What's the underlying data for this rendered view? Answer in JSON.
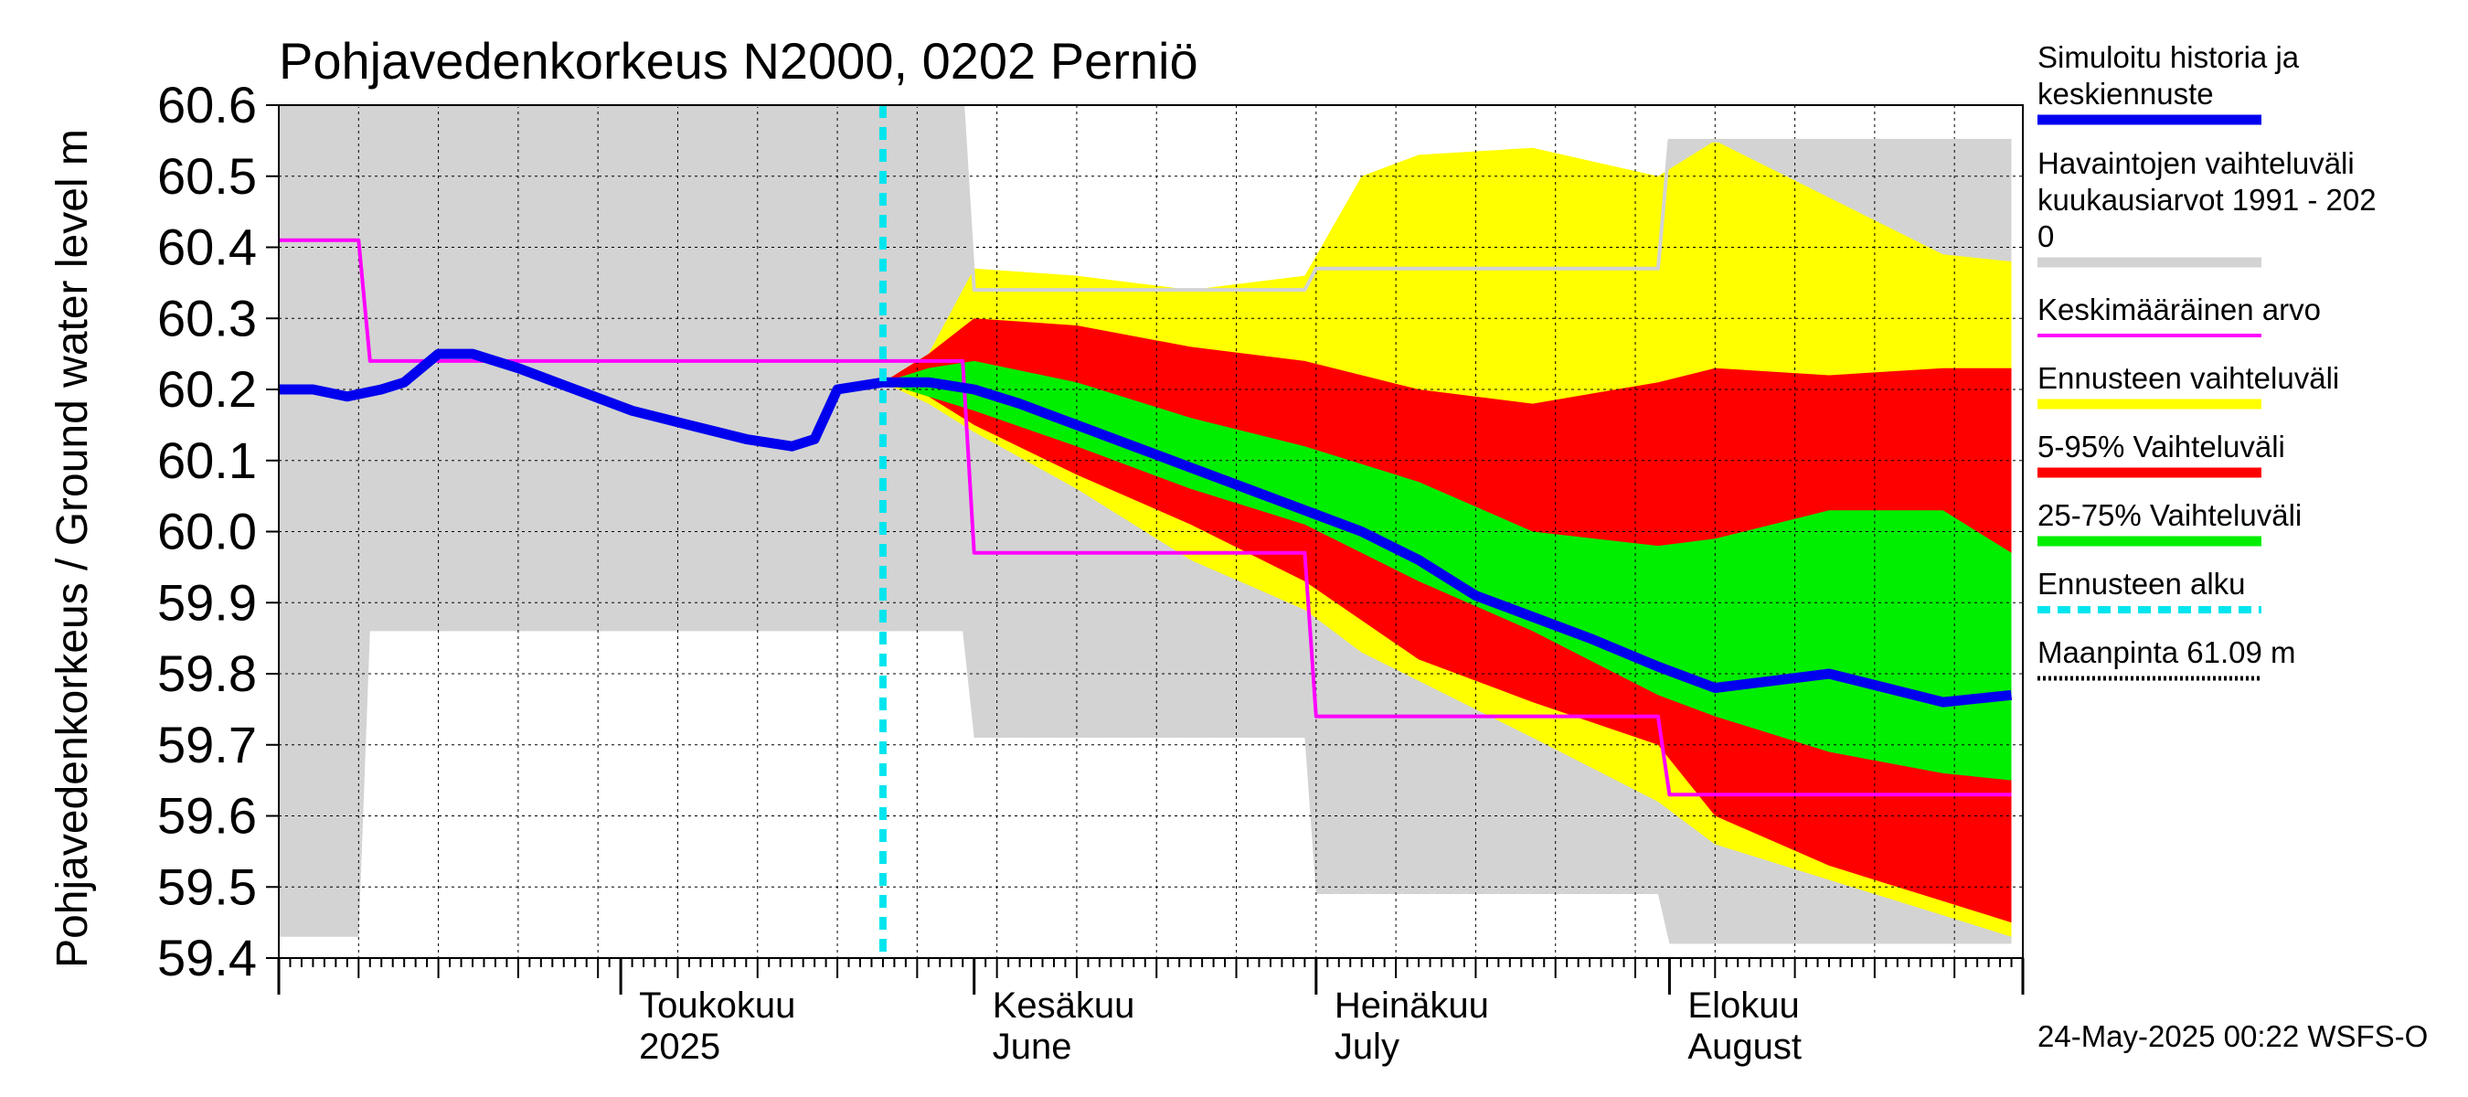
{
  "chart_data": {
    "type": "area",
    "title": "Pohjavedenkorkeus N2000, 0202 Perniö",
    "ylabel": "Pohjavedenkorkeus / Ground water level   m",
    "ylim": [
      59.4,
      60.6
    ],
    "yticks": [
      "59.4",
      "59.5",
      "59.6",
      "59.7",
      "59.8",
      "59.9",
      "60.0",
      "60.1",
      "60.2",
      "60.3",
      "60.4",
      "60.5",
      "60.6"
    ],
    "xlim": [
      "2025-04-01",
      "2025-08-31"
    ],
    "grid": true,
    "legend_position": "right",
    "x_month_labels": [
      {
        "date": "2025-05-01",
        "line1": "Toukokuu",
        "line2": "2025"
      },
      {
        "date": "2025-06-01",
        "line1": "Kesäkuu",
        "line2": "June"
      },
      {
        "date": "2025-07-01",
        "line1": "Heinäkuu",
        "line2": "July"
      },
      {
        "date": "2025-08-01",
        "line1": "Elokuu",
        "line2": "August"
      }
    ],
    "forecast_start": "2025-05-24",
    "observed_range": {
      "name": "Havaintojen vaihteluväli kuukausiarvot 1991 - 2020",
      "x": [
        "2025-04-01",
        "2025-04-08",
        "2025-04-09",
        "2025-05-31",
        "2025-06-01",
        "2025-06-30",
        "2025-07-01",
        "2025-07-31",
        "2025-08-01",
        "2025-08-31"
      ],
      "upper": [
        60.6,
        60.6,
        60.6,
        60.6,
        60.34,
        60.34,
        60.37,
        60.37,
        60.55,
        60.55
      ],
      "lower": [
        59.43,
        59.43,
        59.86,
        59.86,
        59.71,
        59.71,
        59.49,
        59.49,
        59.42,
        59.42
      ]
    },
    "forecast_range": {
      "name": "Ennusteen vaihteluväli",
      "x": [
        "2025-05-24",
        "2025-05-28",
        "2025-06-01",
        "2025-06-10",
        "2025-06-20",
        "2025-06-30",
        "2025-07-05",
        "2025-07-10",
        "2025-07-20",
        "2025-07-31",
        "2025-08-05",
        "2025-08-15",
        "2025-08-25",
        "2025-08-31"
      ],
      "upper": [
        60.21,
        60.25,
        60.37,
        60.36,
        60.34,
        60.36,
        60.5,
        60.53,
        60.54,
        60.5,
        60.55,
        60.47,
        60.39,
        60.38
      ],
      "lower": [
        60.21,
        60.18,
        60.14,
        60.06,
        59.96,
        59.89,
        59.83,
        59.79,
        59.71,
        59.62,
        59.56,
        59.51,
        59.46,
        59.43
      ]
    },
    "range_5_95": {
      "name": "5-95% Vaihteluväli",
      "x": [
        "2025-05-24",
        "2025-05-28",
        "2025-06-01",
        "2025-06-10",
        "2025-06-20",
        "2025-06-30",
        "2025-07-10",
        "2025-07-20",
        "2025-07-31",
        "2025-08-05",
        "2025-08-15",
        "2025-08-25",
        "2025-08-31"
      ],
      "upper": [
        60.21,
        60.25,
        60.3,
        60.29,
        60.26,
        60.24,
        60.2,
        60.18,
        60.21,
        60.23,
        60.22,
        60.23,
        60.23
      ],
      "lower": [
        60.21,
        60.19,
        60.15,
        60.08,
        60.01,
        59.93,
        59.82,
        59.76,
        59.7,
        59.6,
        59.53,
        59.48,
        59.45
      ]
    },
    "range_25_75": {
      "name": "25-75% Vaihteluväli",
      "x": [
        "2025-05-24",
        "2025-05-28",
        "2025-06-01",
        "2025-06-10",
        "2025-06-20",
        "2025-06-30",
        "2025-07-10",
        "2025-07-20",
        "2025-07-31",
        "2025-08-05",
        "2025-08-15",
        "2025-08-25",
        "2025-08-31"
      ],
      "upper": [
        60.21,
        60.23,
        60.24,
        60.21,
        60.16,
        60.12,
        60.07,
        60.0,
        59.98,
        59.99,
        60.03,
        60.03,
        59.97
      ],
      "lower": [
        60.21,
        60.19,
        60.17,
        60.12,
        60.06,
        60.01,
        59.93,
        59.86,
        59.77,
        59.74,
        59.69,
        59.66,
        59.65
      ]
    },
    "series": [
      {
        "name": "Simuloitu historia ja keskiennuste",
        "color": "#0000ee",
        "x": [
          "2025-04-01",
          "2025-04-04",
          "2025-04-07",
          "2025-04-10",
          "2025-04-12",
          "2025-04-15",
          "2025-04-18",
          "2025-04-22",
          "2025-04-27",
          "2025-05-02",
          "2025-05-07",
          "2025-05-12",
          "2025-05-16",
          "2025-05-18",
          "2025-05-20",
          "2025-05-24",
          "2025-05-28",
          "2025-06-01",
          "2025-06-05",
          "2025-06-10",
          "2025-06-15",
          "2025-06-20",
          "2025-06-25",
          "2025-06-30",
          "2025-07-05",
          "2025-07-10",
          "2025-07-15",
          "2025-07-20",
          "2025-07-25",
          "2025-07-31",
          "2025-08-05",
          "2025-08-10",
          "2025-08-15",
          "2025-08-20",
          "2025-08-25",
          "2025-08-31"
        ],
        "values": [
          60.2,
          60.2,
          60.19,
          60.2,
          60.21,
          60.25,
          60.25,
          60.23,
          60.2,
          60.17,
          60.15,
          60.13,
          60.12,
          60.13,
          60.2,
          60.21,
          60.21,
          60.2,
          60.18,
          60.15,
          60.12,
          60.09,
          60.06,
          60.03,
          60.0,
          59.96,
          59.91,
          59.88,
          59.85,
          59.81,
          59.78,
          59.79,
          59.8,
          59.78,
          59.76,
          59.77
        ]
      },
      {
        "name": "Keskimääräinen arvo",
        "color": "#ff00ff",
        "x": [
          "2025-04-01",
          "2025-04-08",
          "2025-04-09",
          "2025-05-31",
          "2025-06-01",
          "2025-06-30",
          "2025-07-01",
          "2025-07-31",
          "2025-08-01",
          "2025-08-31"
        ],
        "values": [
          60.41,
          60.41,
          60.24,
          60.24,
          59.97,
          59.97,
          59.74,
          59.74,
          59.63,
          59.63
        ]
      }
    ],
    "legend": [
      {
        "label": "Simuloitu historia ja keskiennuste",
        "color": "#0000ee",
        "style": "thick"
      },
      {
        "label": "Havaintojen vaihteluväli kuukausiarvot 1991 - 2020",
        "color": "#d3d3d3",
        "style": "thick"
      },
      {
        "label": "Keskimääräinen arvo",
        "color": "#ff00ff",
        "style": "thin"
      },
      {
        "label": "Ennusteen vaihteluväli",
        "color": "#ffff00",
        "style": "thick"
      },
      {
        "label": "5-95% Vaihteluväli",
        "color": "#ff0000",
        "style": "thick"
      },
      {
        "label": "25-75% Vaihteluväli",
        "color": "#00ee00",
        "style": "thick"
      },
      {
        "label": "Ennusteen alku",
        "color": "#00e5ee",
        "style": "dashed"
      },
      {
        "label": "Maanpinta 61.09 m",
        "color": "#000000",
        "style": "dotted"
      }
    ],
    "footer": "24-May-2025 00:22 WSFS-O"
  }
}
